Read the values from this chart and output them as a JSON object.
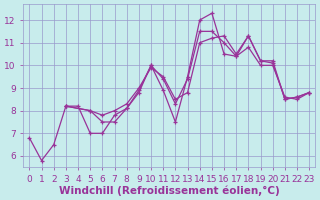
{
  "xlabel": "Windchill (Refroidissement éolien,°C)",
  "xlim": [
    -0.5,
    23.5
  ],
  "ylim": [
    5.5,
    12.7
  ],
  "xticks": [
    0,
    1,
    2,
    3,
    4,
    5,
    6,
    7,
    8,
    9,
    10,
    11,
    12,
    13,
    14,
    15,
    16,
    17,
    18,
    19,
    20,
    21,
    22,
    23
  ],
  "yticks": [
    6,
    7,
    8,
    9,
    10,
    11,
    12
  ],
  "bg_color": "#c8ecec",
  "grid_color": "#9999cc",
  "line_color": "#993399",
  "zigzag_x": [
    0,
    1,
    2,
    3,
    4,
    5,
    6,
    7,
    8,
    9,
    10,
    11,
    12,
    13,
    14,
    15,
    16,
    17,
    18,
    19,
    20,
    21,
    22,
    23
  ],
  "zigzag_y": [
    6.8,
    5.8,
    6.5,
    8.2,
    8.2,
    7.0,
    7.0,
    7.8,
    8.1,
    8.9,
    10.0,
    8.9,
    7.5,
    9.5,
    12.0,
    12.3,
    10.5,
    10.4,
    11.3,
    10.2,
    10.1,
    8.5,
    8.6,
    8.8
  ],
  "trend1_x": [
    3,
    5,
    6,
    7,
    8,
    9,
    10,
    11,
    12,
    13,
    14,
    15,
    16,
    17,
    18,
    19,
    20,
    21,
    22,
    23
  ],
  "trend1_y": [
    8.2,
    8.0,
    7.5,
    7.5,
    8.1,
    8.8,
    10.0,
    9.4,
    8.3,
    9.4,
    11.5,
    11.5,
    11.0,
    10.4,
    10.8,
    10.0,
    10.0,
    8.6,
    8.5,
    8.8
  ],
  "trend2_x": [
    3,
    5,
    6,
    7,
    8,
    9,
    10,
    11,
    12,
    13,
    14,
    15,
    16,
    17,
    18,
    19,
    20,
    21,
    22,
    23
  ],
  "trend2_y": [
    8.2,
    8.0,
    7.8,
    8.0,
    8.3,
    9.0,
    9.9,
    9.5,
    8.5,
    8.8,
    11.0,
    11.2,
    11.3,
    10.5,
    11.3,
    10.2,
    10.2,
    8.5,
    8.6,
    8.8
  ],
  "font_color": "#993399",
  "tick_fontsize": 6.5,
  "xlabel_fontsize": 7.5
}
